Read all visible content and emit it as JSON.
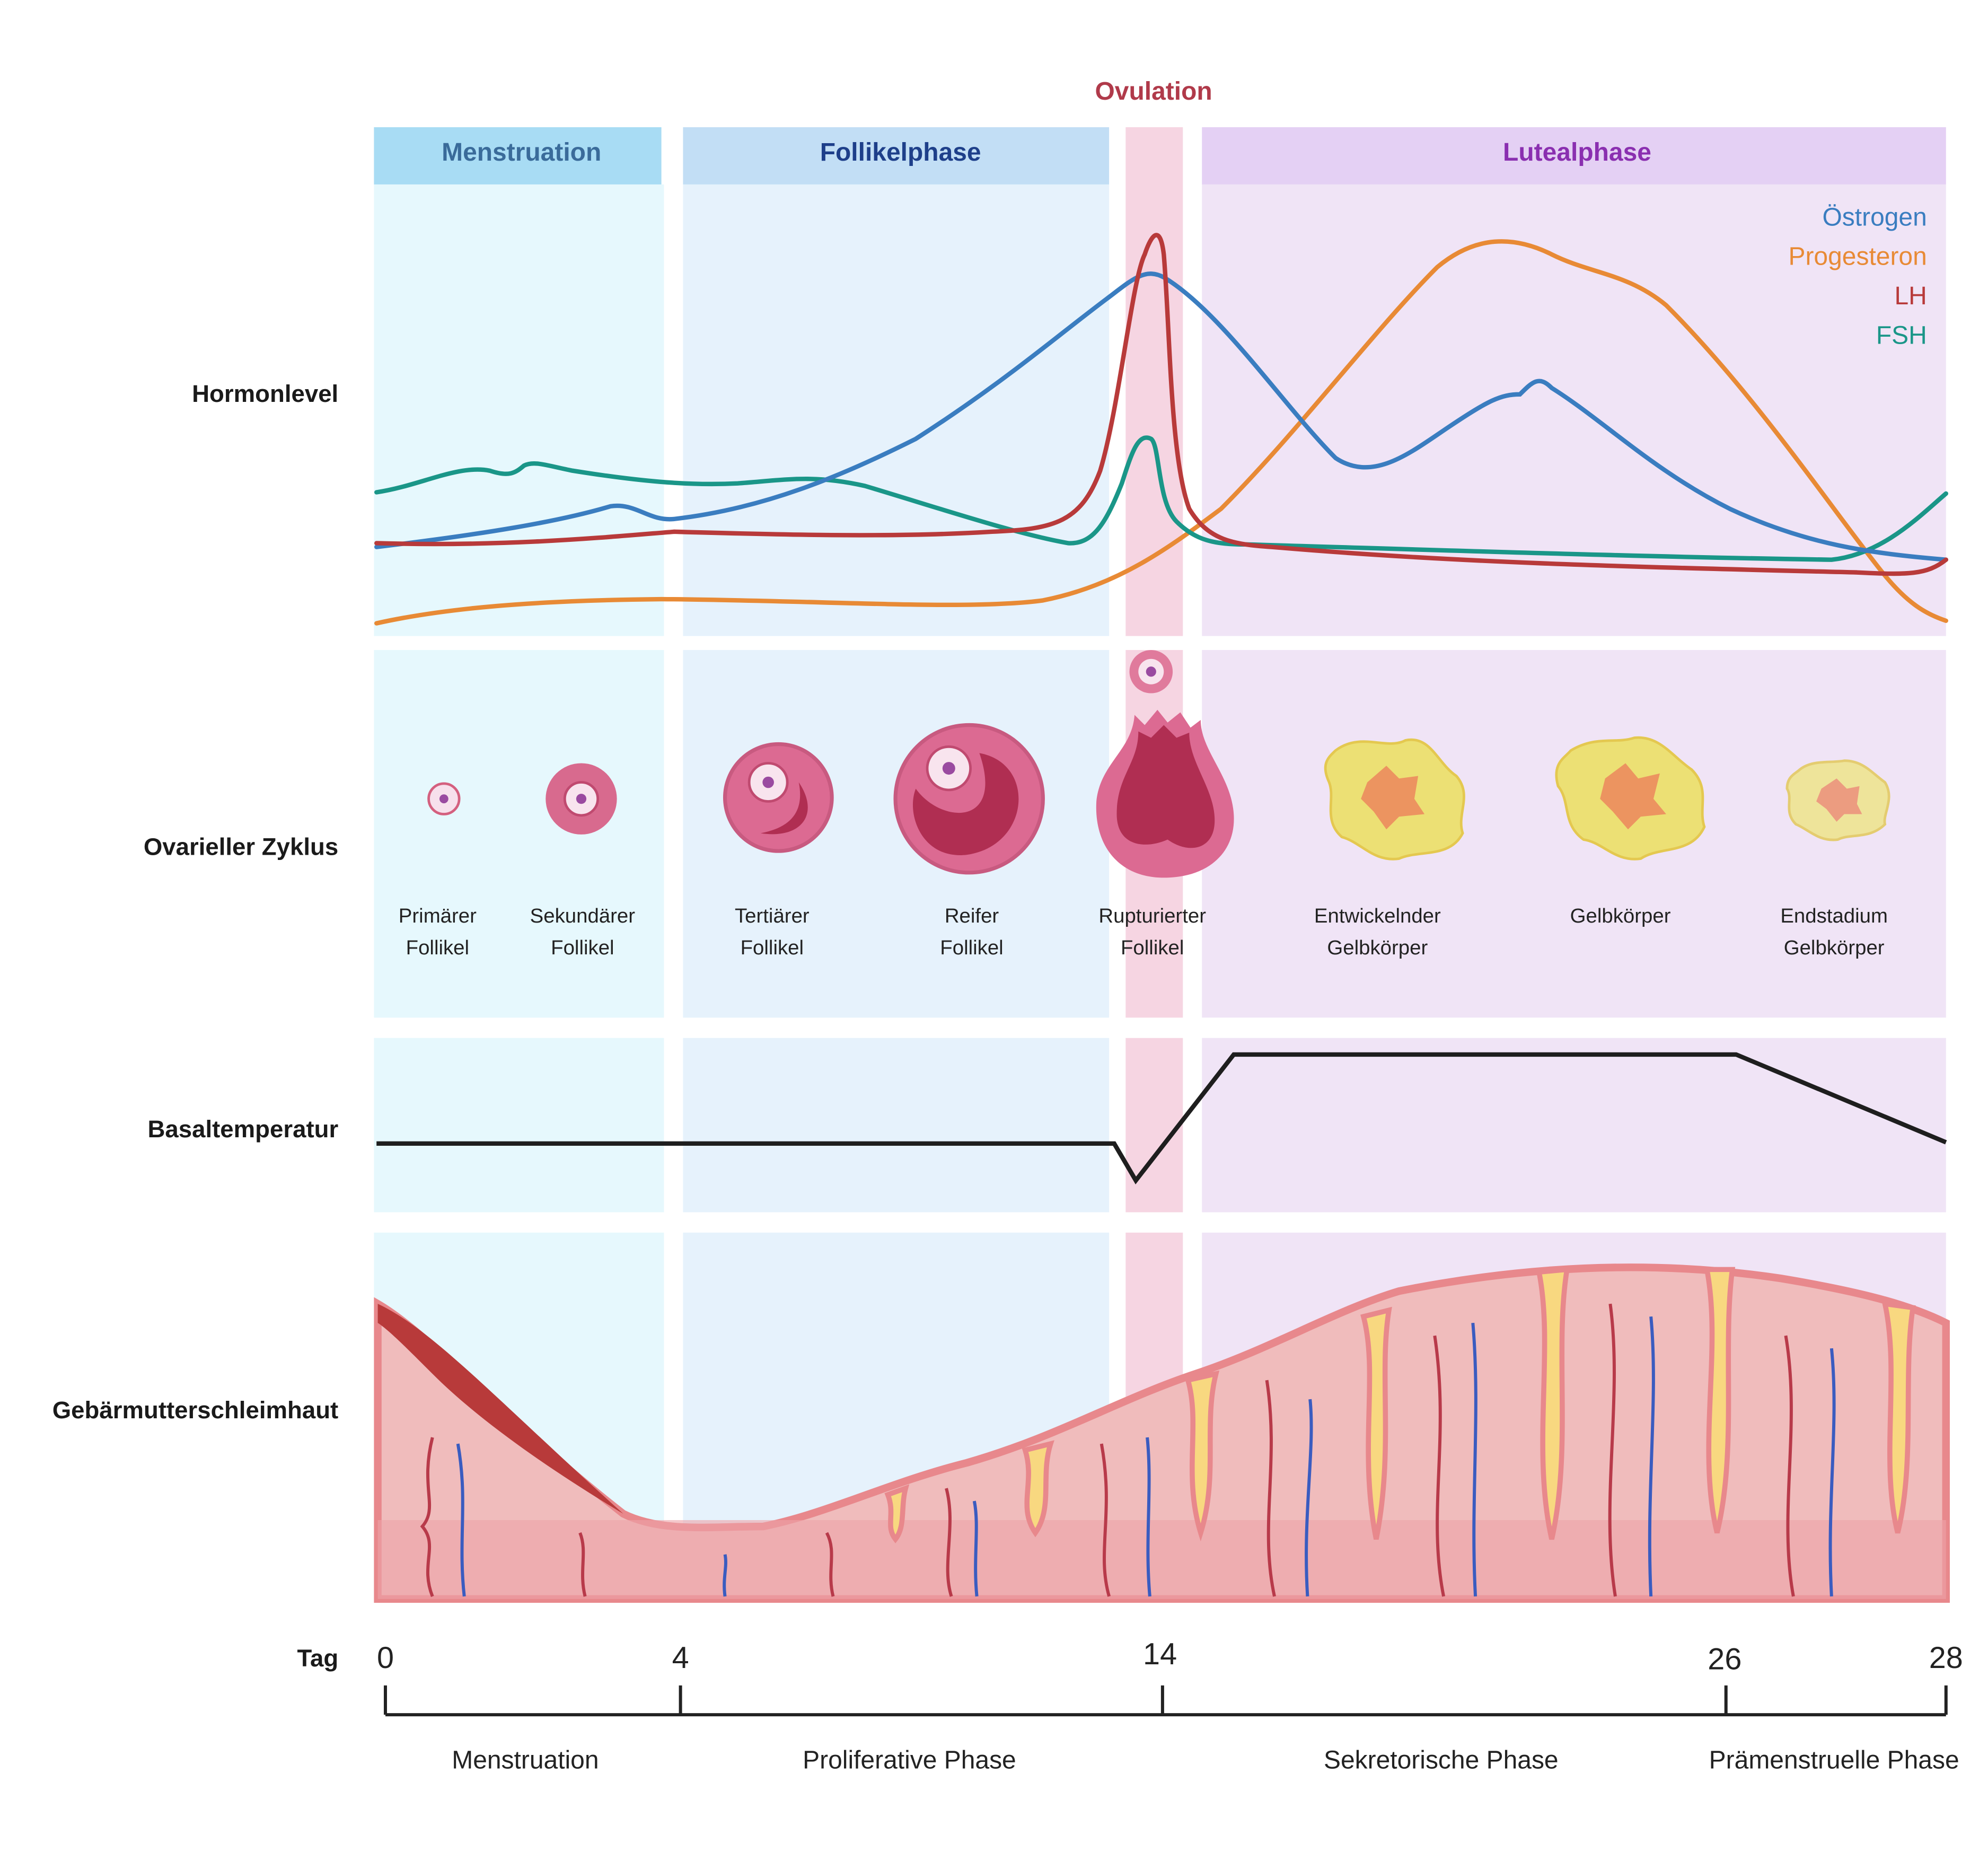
{
  "ovulation": "Ovulation",
  "phases": [
    "Menstruation",
    "Follikelphase",
    "Lutealphase"
  ],
  "row_labels": [
    "Hormonlevel",
    "Ovarieller Zyklus",
    "Basaltemperatur",
    "Gebärmutterschleimhaut",
    "Tag"
  ],
  "legend": [
    "Östrogen",
    "Progesteron",
    "LH",
    "FSH"
  ],
  "follicles": [
    [
      "Primärer",
      "Follikel"
    ],
    [
      "Sekundärer",
      "Follikel"
    ],
    [
      "Tertiärer",
      "Follikel"
    ],
    [
      "Reifer",
      "Follikel"
    ],
    [
      "Rupturierter",
      "Follikel"
    ],
    [
      "Entwickelnder",
      "Gelbkörper"
    ],
    [
      "Gelbkörper"
    ],
    [
      "Endstadium",
      "Gelbkörper"
    ]
  ],
  "days": [
    "0",
    "4",
    "14",
    "26",
    "28"
  ],
  "cycle_phases": [
    "Menstruation",
    "Proliferative Phase",
    "Sekretorische Phase",
    "Prämenstruelle Phase"
  ]
}
